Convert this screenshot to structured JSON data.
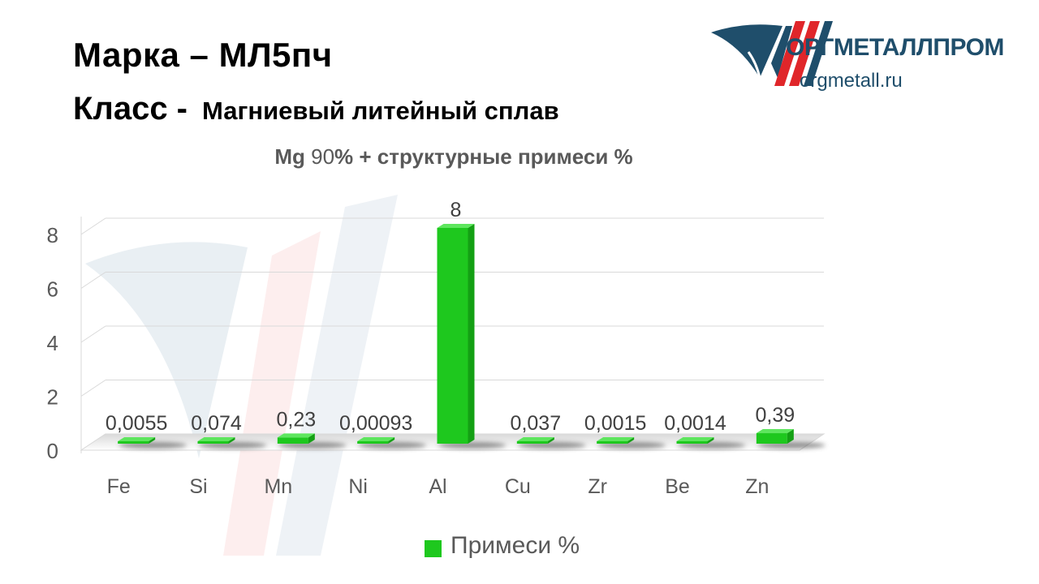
{
  "header": {
    "grade_line": "Марка  – МЛ5пч",
    "class_label": "Класс -",
    "class_value": "Магниевый литейный сплав"
  },
  "logo": {
    "name": "ОРГМЕТАЛЛПРОМ",
    "url": "orgmetall.ru"
  },
  "colors": {
    "bar": "#1ec81e",
    "bar_side": "#14a014",
    "bar_top": "#5ee65e",
    "logo_dark": "#1f4e6b",
    "logo_red": "#e0262a",
    "axis_text": "#595959"
  },
  "chart_data": {
    "type": "bar",
    "title": {
      "element": "Mg",
      "value": "90",
      "rest": "% + структурные  примеси %"
    },
    "categories": [
      "Fe",
      "Si",
      "Mn",
      "Ni",
      "Al",
      "Cu",
      "Zr",
      "Be",
      "Zn"
    ],
    "series": [
      {
        "name": "Примеси %",
        "values": [
          0.0055,
          0.074,
          0.23,
          0.00093,
          8,
          0.037,
          0.0015,
          0.0014,
          0.39
        ],
        "labels": [
          "0,0055",
          "0,074",
          "0,23",
          "0,00093",
          "8",
          "0,037",
          "0,0015",
          "0,0014",
          "0,39"
        ]
      }
    ],
    "ylim": [
      0,
      8
    ],
    "yticks": [
      0,
      2,
      4,
      6,
      8
    ],
    "grid": true,
    "legend": "bottom",
    "style": "3d-bar"
  }
}
